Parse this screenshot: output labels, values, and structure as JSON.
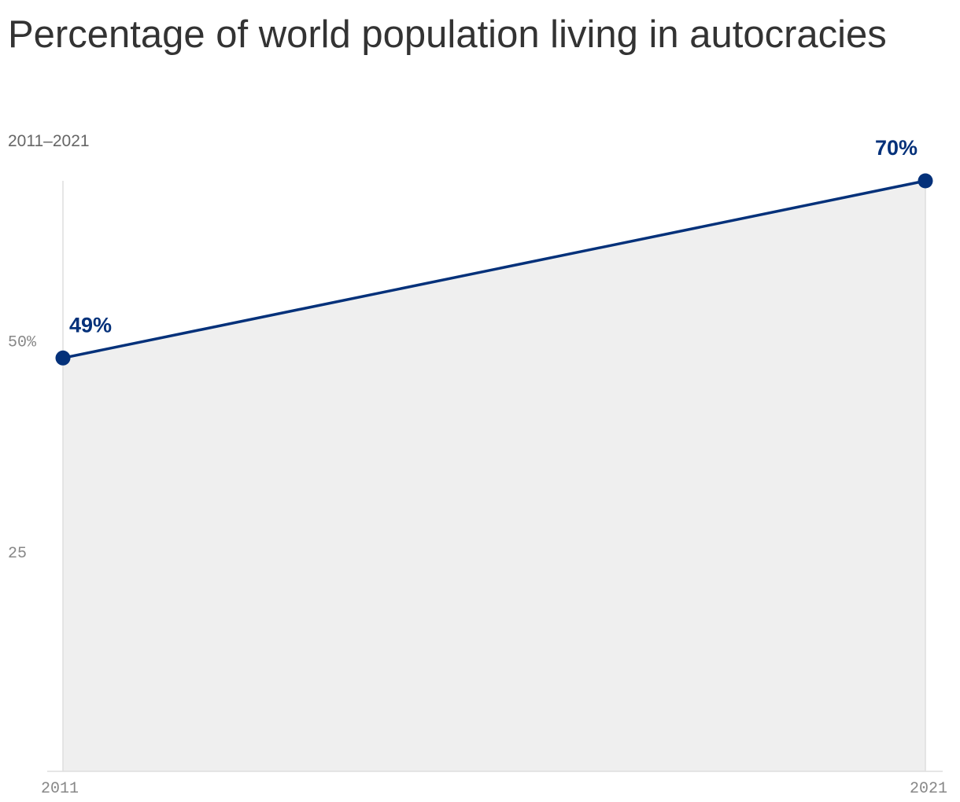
{
  "title": "Percentage of world population living in autocracies",
  "subtitle": "2011–2021",
  "colors": {
    "line": "#04317a",
    "area": "#efefef",
    "axis": "#dddddd",
    "tick_label": "#888888",
    "label": "#04317a"
  },
  "chart_data": {
    "type": "area",
    "title": "Percentage of world population living in autocracies",
    "subtitle": "2011–2021",
    "x": [
      2011,
      2021
    ],
    "x_tick_labels": [
      "2011",
      "2021"
    ],
    "series": [
      {
        "values": [
          49,
          70
        ]
      }
    ],
    "data_labels": [
      "49%",
      "70%"
    ],
    "ylim": [
      0,
      70
    ],
    "y_ticks": [
      {
        "value": 50,
        "label": "50%"
      },
      {
        "value": 25,
        "label": "25"
      }
    ],
    "grid": false,
    "legend": "none"
  }
}
